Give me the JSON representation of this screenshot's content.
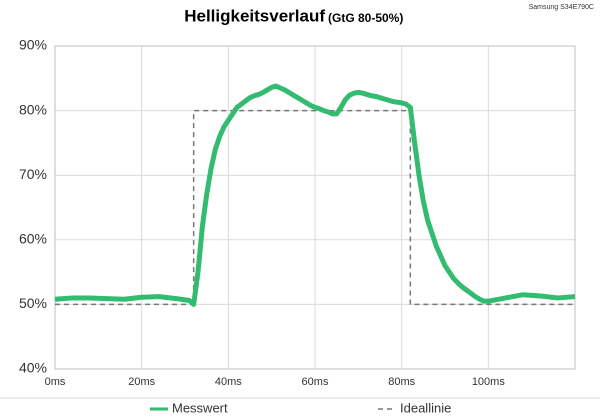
{
  "chart_data": {
    "type": "line",
    "title": "Helligkeitsverlauf",
    "subtitle": "(GtG 80-50%)",
    "annotation": "Samsung S34E790C",
    "xlim": [
      0,
      120
    ],
    "xticks": [
      {
        "value": 0,
        "label": "0ms"
      },
      {
        "value": 20,
        "label": "20ms"
      },
      {
        "value": 40,
        "label": "40ms"
      },
      {
        "value": 60,
        "label": "60ms"
      },
      {
        "value": 80,
        "label": "80ms"
      },
      {
        "value": 100,
        "label": "100ms"
      }
    ],
    "ylim": [
      40,
      90
    ],
    "yticks": [
      {
        "value": 40,
        "label": "40%"
      },
      {
        "value": 50,
        "label": "50%"
      },
      {
        "value": 60,
        "label": "60%"
      },
      {
        "value": 70,
        "label": "70%"
      },
      {
        "value": 80,
        "label": "80%"
      },
      {
        "value": 90,
        "label": "90%"
      }
    ],
    "grid": true,
    "legend": "bottom",
    "series": [
      {
        "name": "Messwert",
        "color": "#33bb70",
        "style": "solid",
        "x": [
          0,
          4,
          8,
          12,
          16,
          20,
          24,
          28,
          31,
          32,
          33,
          34,
          35,
          36,
          37,
          38,
          39,
          40,
          41,
          42,
          43,
          44,
          45,
          46,
          47,
          48,
          49,
          50,
          51,
          52,
          53,
          54,
          55,
          56,
          57,
          58,
          59,
          60,
          61,
          62,
          63,
          64,
          65,
          66,
          67,
          68,
          69,
          70,
          71,
          72,
          73,
          74,
          75,
          76,
          77,
          78,
          79,
          80,
          81,
          82,
          83,
          84,
          85,
          86,
          87,
          88,
          89,
          90,
          91,
          92,
          93,
          94,
          95,
          96,
          97,
          98,
          99,
          100,
          104,
          108,
          112,
          116,
          120
        ],
        "values": [
          50.8,
          51,
          51,
          50.9,
          50.8,
          51.1,
          51.2,
          50.9,
          50.6,
          50,
          55,
          62,
          67,
          71,
          74,
          76,
          77.5,
          78.5,
          79.5,
          80.5,
          81,
          81.5,
          82,
          82.3,
          82.5,
          82.8,
          83.2,
          83.6,
          83.8,
          83.5,
          83.2,
          82.8,
          82.4,
          82,
          81.6,
          81.2,
          80.8,
          80.5,
          80.3,
          80,
          79.8,
          79.5,
          79.5,
          80.5,
          81.7,
          82.4,
          82.7,
          82.8,
          82.7,
          82.5,
          82.3,
          82.2,
          82,
          81.8,
          81.6,
          81.4,
          81.3,
          81.2,
          81,
          80.5,
          75,
          70,
          66,
          63,
          61,
          59,
          57.5,
          56,
          55,
          54,
          53.3,
          52.7,
          52.2,
          51.7,
          51.2,
          50.8,
          50.5,
          50.5,
          51,
          51.5,
          51.3,
          51,
          51.2
        ]
      },
      {
        "name": "Ideallinie",
        "color": "#777777",
        "style": "dashed",
        "x": [
          0,
          32,
          32,
          82,
          82,
          120
        ],
        "values": [
          50,
          50,
          80,
          80,
          50,
          50
        ]
      }
    ]
  }
}
